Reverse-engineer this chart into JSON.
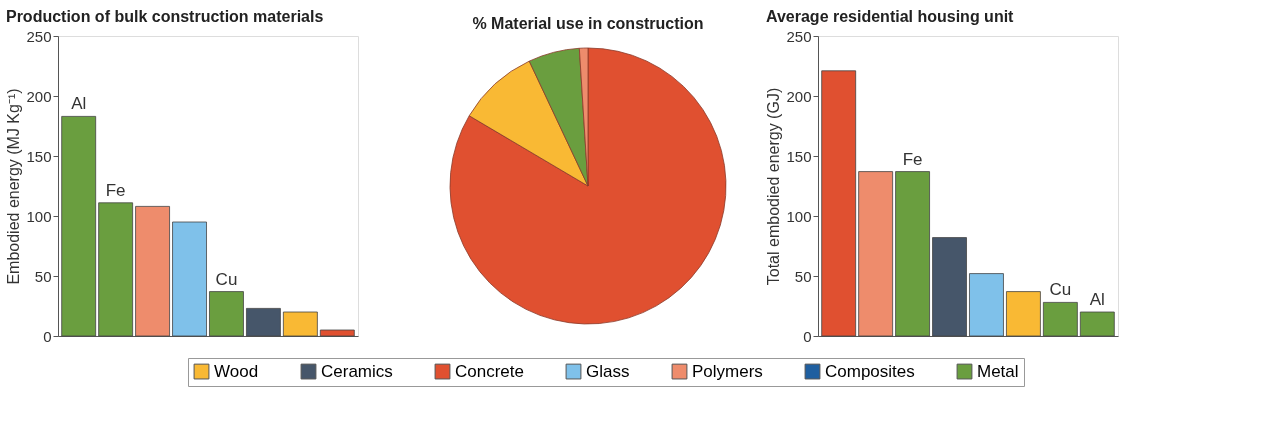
{
  "chart_data": [
    {
      "type": "bar",
      "title": "Production of bulk construction materials",
      "ylabel": "Embodied energy (MJ Kg⁻¹)",
      "categories": [
        null,
        null,
        null,
        null,
        null,
        null,
        null,
        null
      ],
      "ylim": [
        0,
        250
      ],
      "yticks": [
        0,
        50,
        100,
        150,
        200,
        250
      ],
      "tick_labels": "y",
      "grid": false,
      "legend": "bottom",
      "series": [
        {
          "name": "Wood",
          "color": "#f9b934",
          "values": [
            null,
            null,
            null,
            null,
            null,
            null,
            20,
            null
          ]
        },
        {
          "name": "Ceramics",
          "color": "#46566a",
          "values": [
            null,
            null,
            null,
            null,
            null,
            23,
            null,
            null
          ]
        },
        {
          "name": "Concrete",
          "color": "#e05030",
          "values": [
            null,
            null,
            null,
            null,
            null,
            null,
            null,
            5
          ]
        },
        {
          "name": "Glass",
          "color": "#7fc1ea",
          "values": [
            null,
            null,
            null,
            95,
            null,
            null,
            null,
            null
          ]
        },
        {
          "name": "Polymers",
          "color": "#ee8c6c",
          "values": [
            null,
            null,
            108,
            null,
            null,
            null,
            null,
            null
          ]
        },
        {
          "name": "Composites",
          "color": "#1f5fa0",
          "values": [
            null,
            null,
            null,
            null,
            null,
            null,
            null,
            null
          ]
        },
        {
          "name": "Metal",
          "color": "#6a9e3f",
          "values": [
            183,
            111,
            null,
            null,
            37,
            null,
            null,
            null
          ],
          "value_labels": [
            "Al",
            "Fe",
            null,
            null,
            "Cu",
            null,
            null,
            null
          ]
        }
      ]
    },
    {
      "type": "pie",
      "title": "% Material use in construction",
      "categories": [
        null,
        null,
        null,
        null
      ],
      "values": [
        83.5,
        9.5,
        6,
        1
      ],
      "colors": [
        "#e05030",
        "#f9b934",
        "#6a9e3f",
        "#ee8c6c"
      ]
    },
    {
      "type": "bar",
      "title": "Average residential housing unit",
      "ylabel": "Total embodied energy (GJ)",
      "categories": [
        null,
        null,
        null,
        null,
        null,
        null,
        null,
        null
      ],
      "ylim": [
        0,
        250
      ],
      "yticks": [
        0,
        50,
        100,
        150,
        200,
        250
      ],
      "tick_labels": "y",
      "grid": false,
      "series": [
        {
          "color": "#e05030",
          "values": [
            221,
            null,
            null,
            null,
            null,
            null,
            null,
            null
          ]
        },
        {
          "color": "#ee8c6c",
          "values": [
            null,
            137,
            null,
            null,
            null,
            null,
            null,
            null
          ]
        },
        {
          "color": "#6a9e3f",
          "values": [
            null,
            null,
            137,
            null,
            null,
            null,
            28,
            20
          ],
          "value_labels": [
            null,
            null,
            "Fe",
            null,
            null,
            null,
            "Cu",
            "Al"
          ]
        },
        {
          "color": "#46566a",
          "values": [
            null,
            null,
            null,
            82,
            null,
            null,
            null,
            null
          ]
        },
        {
          "color": "#7fc1ea",
          "values": [
            null,
            null,
            null,
            null,
            52,
            null,
            null,
            null
          ]
        },
        {
          "color": "#f9b934",
          "values": [
            null,
            null,
            null,
            null,
            null,
            37,
            null,
            null
          ]
        }
      ]
    }
  ]
}
